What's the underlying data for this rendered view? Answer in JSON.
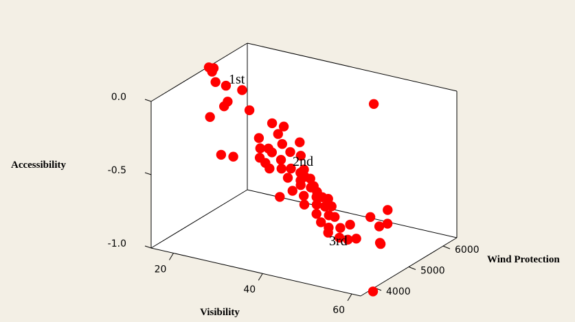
{
  "chart_data": {
    "type": "scatter",
    "subtype": "3d-scatter",
    "title": "",
    "background_color": "#f3efe5",
    "point_color": "#ff0000",
    "axes": {
      "x": {
        "label": "Visibility",
        "ticks": [
          "20",
          "40",
          "60"
        ],
        "tick_values": [
          20,
          40,
          60
        ],
        "range": [
          15,
          62
        ]
      },
      "y": {
        "label": "Wind Protection",
        "ticks": [
          "4000",
          "5000",
          "6000"
        ],
        "tick_values": [
          4000,
          5000,
          6000
        ],
        "range": [
          3600,
          6400
        ]
      },
      "z": {
        "label": "Accessibility",
        "ticks": [
          "0.0",
          "-0.5",
          "-1.0"
        ],
        "tick_values": [
          0.0,
          -0.5,
          -1.0
        ],
        "range": [
          -1.0,
          0.0
        ]
      }
    },
    "annotations": [
      {
        "text": "1st"
      },
      {
        "text": "2nd"
      },
      {
        "text": "3rd"
      }
    ],
    "points_xyz": [
      [
        18.0,
        4890,
        0.07
      ],
      [
        18.5,
        4920,
        0.04
      ],
      [
        19.0,
        4900,
        0.07
      ],
      [
        19.5,
        4890,
        -0.02
      ],
      [
        21.0,
        5000,
        -0.05
      ],
      [
        24.0,
        5080,
        -0.07
      ],
      [
        21.5,
        4880,
        -0.17
      ],
      [
        22.0,
        4920,
        -0.14
      ],
      [
        25.5,
        5100,
        -0.2
      ],
      [
        20.5,
        4600,
        -0.21
      ],
      [
        23.0,
        4600,
        -0.45
      ],
      [
        25.5,
        4630,
        -0.45
      ],
      [
        29.0,
        4920,
        -0.34
      ],
      [
        31.0,
        4940,
        -0.4
      ],
      [
        30.0,
        4830,
        -0.39
      ],
      [
        30.5,
        4750,
        -0.44
      ],
      [
        31.5,
        4980,
        -0.23
      ],
      [
        33.5,
        5060,
        -0.25
      ],
      [
        33.0,
        4960,
        -0.29
      ],
      [
        36.0,
        5200,
        -0.36
      ],
      [
        34.0,
        4950,
        -0.35
      ],
      [
        35.5,
        4990,
        -0.4
      ],
      [
        33.0,
        4780,
        -0.39
      ],
      [
        34.5,
        4850,
        -0.44
      ],
      [
        37.0,
        5100,
        -0.43
      ],
      [
        32.0,
        4720,
        -0.46
      ],
      [
        33.0,
        4710,
        -0.49
      ],
      [
        35.0,
        4800,
        -0.49
      ],
      [
        36.5,
        4880,
        -0.49
      ],
      [
        38.5,
        5000,
        -0.5
      ],
      [
        38.0,
        4960,
        -0.52
      ],
      [
        36.5,
        4790,
        -0.54
      ],
      [
        39.0,
        4960,
        -0.54
      ],
      [
        38.5,
        4900,
        -0.56
      ],
      [
        40.0,
        4990,
        -0.55
      ],
      [
        36.0,
        4620,
        -0.65
      ],
      [
        39.0,
        4840,
        -0.58
      ],
      [
        40.5,
        4940,
        -0.6
      ],
      [
        41.0,
        4960,
        -0.59
      ],
      [
        41.5,
        4990,
        -0.63
      ],
      [
        38.0,
        4730,
        -0.61
      ],
      [
        40.0,
        4800,
        -0.64
      ],
      [
        42.0,
        4910,
        -0.65
      ],
      [
        43.0,
        4950,
        -0.65
      ],
      [
        44.0,
        4990,
        -0.66
      ],
      [
        40.5,
        4750,
        -0.69
      ],
      [
        42.5,
        4850,
        -0.69
      ],
      [
        44.0,
        4900,
        -0.7
      ],
      [
        45.0,
        4960,
        -0.7
      ],
      [
        43.0,
        4780,
        -0.74
      ],
      [
        45.0,
        4880,
        -0.75
      ],
      [
        46.0,
        4920,
        -0.76
      ],
      [
        44.0,
        4780,
        -0.79
      ],
      [
        45.5,
        4810,
        -0.82
      ],
      [
        47.5,
        4890,
        -0.82
      ],
      [
        49.0,
        4980,
        -0.8
      ],
      [
        46.0,
        4730,
        -0.84
      ],
      [
        48.0,
        4800,
        -0.87
      ],
      [
        49.5,
        4850,
        -0.88
      ],
      [
        51.0,
        4900,
        -0.87
      ],
      [
        53.0,
        5050,
        -0.73
      ],
      [
        55.5,
        5230,
        -0.69
      ],
      [
        56.0,
        5160,
        -0.77
      ],
      [
        55.0,
        5050,
        -0.78
      ],
      [
        56.0,
        4960,
        -0.88
      ],
      [
        48.0,
        5800,
        -0.1
      ],
      [
        54.0,
        5200,
        -0.92
      ],
      [
        62.0,
        3960,
        -1.02
      ]
    ]
  }
}
